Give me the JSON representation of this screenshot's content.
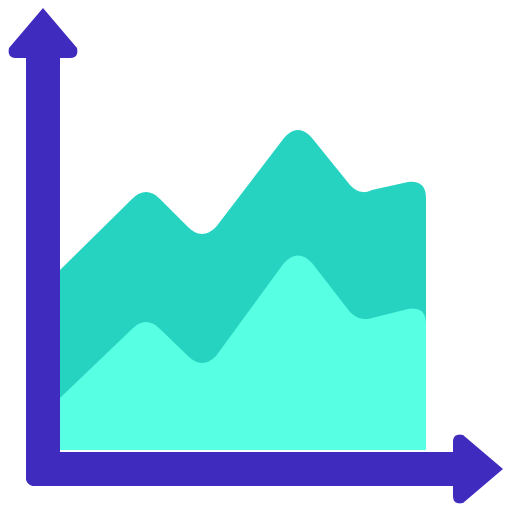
{
  "icon": {
    "name": "area-chart-icon",
    "colors": {
      "axis": "#402BBF",
      "back_area": "#26D3C0",
      "front_area": "#57FFE3",
      "background": "#FFFFFF"
    }
  }
}
